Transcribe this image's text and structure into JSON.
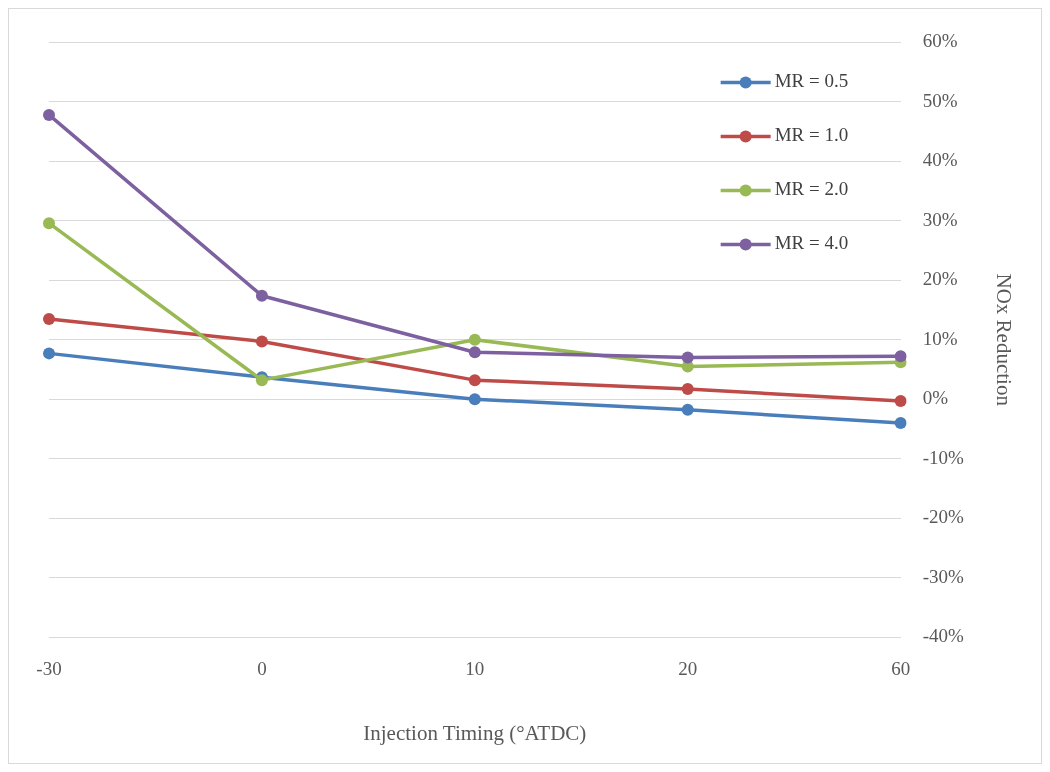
{
  "chart_data": {
    "type": "line",
    "xlabel": "Injection Timing (°ATDC)",
    "ylabel": "NOx Reduction",
    "categories": [
      "-30",
      "0",
      "10",
      "20",
      "60"
    ],
    "series": [
      {
        "name": "MR = 0.5",
        "color": "#4a7ebb",
        "values": [
          7.7,
          3.7,
          0,
          -1.8,
          -4
        ]
      },
      {
        "name": "MR = 1.0",
        "color": "#be4b48",
        "values": [
          13.5,
          9.7,
          3.2,
          1.7,
          -0.3
        ]
      },
      {
        "name": "MR = 2.0",
        "color": "#98b954",
        "values": [
          29.6,
          3.2,
          10,
          5.5,
          6.2
        ]
      },
      {
        "name": "MR = 4.0",
        "color": "#7d60a0",
        "values": [
          47.8,
          17.4,
          7.9,
          7,
          7.2
        ]
      }
    ],
    "ylim": [
      -40,
      60
    ],
    "yticks": [
      {
        "value": -40,
        "label": "-40%"
      },
      {
        "value": -30,
        "label": "-30%"
      },
      {
        "value": -20,
        "label": "-20%"
      },
      {
        "value": -10,
        "label": "-10%"
      },
      {
        "value": 0,
        "label": "0%"
      },
      {
        "value": 10,
        "label": "10%"
      },
      {
        "value": 20,
        "label": "20%"
      },
      {
        "value": 30,
        "label": "30%"
      },
      {
        "value": 40,
        "label": "40%"
      },
      {
        "value": 50,
        "label": "50%"
      },
      {
        "value": 60,
        "label": "60%"
      }
    ],
    "grid": "y",
    "legend": "top right",
    "marker": "circle",
    "line_style": "solid"
  }
}
